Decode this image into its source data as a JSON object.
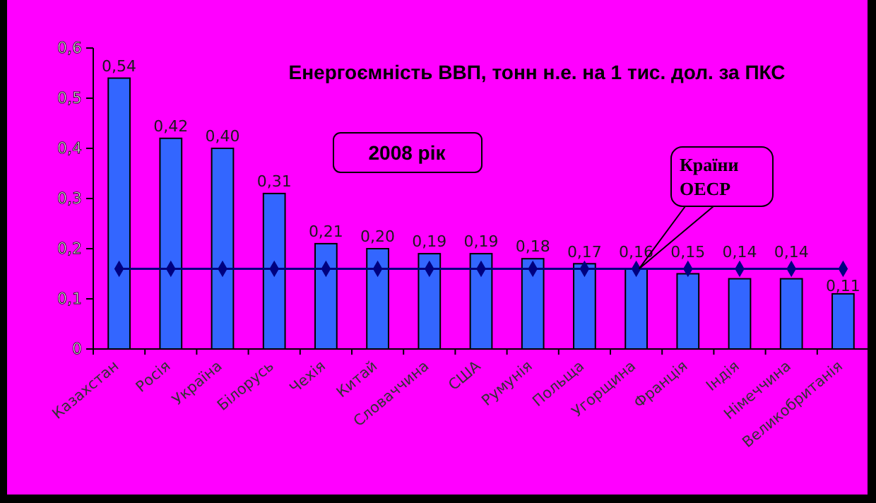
{
  "chart_data": {
    "type": "bar",
    "title": "Енергоємність ВВП, тонн н.е. на 1 тис. дол. за ПКС",
    "subtitle": "2008 рік",
    "categories": [
      "Казахстан",
      "Росія",
      "Україна",
      "Білорусь",
      "Чехія",
      "Китай",
      "Словаччина",
      "США",
      "Румунія",
      "Польща",
      "Угорщина",
      "Франція",
      "Індія",
      "Німеччина",
      "Великобританія"
    ],
    "series": [
      {
        "color": "#3366ff",
        "values": [
          0.54,
          0.42,
          0.4,
          0.31,
          0.21,
          0.2,
          0.19,
          0.19,
          0.18,
          0.17,
          0.16,
          0.15,
          0.14,
          0.14,
          0.11
        ],
        "value_labels": [
          "0,54",
          "0,42",
          "0,40",
          "0,31",
          "0,21",
          "0,20",
          "0,19",
          "0,19",
          "0,18",
          "0,17",
          "0,16",
          "0,15",
          "0,14",
          "0,14",
          "0,11"
        ]
      },
      {
        "type": "line",
        "name": "Країни ОЕСР",
        "color": "#000080",
        "marker": "diamond",
        "values": [
          0.16,
          0.16,
          0.16,
          0.16,
          0.16,
          0.16,
          0.16,
          0.16,
          0.16,
          0.16,
          0.16,
          0.16,
          0.16,
          0.16,
          0.16
        ]
      }
    ],
    "ylim": [
      0,
      0.6
    ],
    "yticks": [
      0,
      {
        "value": 0.1,
        "label": "0,1"
      },
      {
        "value": 0.2,
        "label": "0,2"
      },
      {
        "value": 0.3,
        "label": "0,3"
      },
      {
        "value": 0.4,
        "label": "0,4"
      },
      {
        "value": 0.5,
        "label": "0,5"
      },
      {
        "value": 0.6,
        "label": "0,6"
      }
    ],
    "grid": false,
    "legend": false
  }
}
